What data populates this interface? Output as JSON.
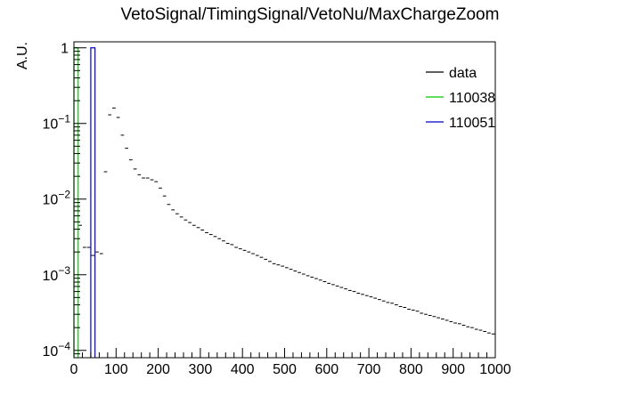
{
  "chart_data": {
    "type": "histogram",
    "title": "VetoSignal/TimingSignal/VetoNu/MaxChargeZoom",
    "ylabel": "A.U.",
    "xlabel": "",
    "x_range": [
      0,
      1000
    ],
    "y_range": [
      8e-05,
      1.2
    ],
    "y_scale": "log",
    "grid": false,
    "legend_position": "top-right",
    "x_ticks": [
      {
        "v": 0,
        "label": "0"
      },
      {
        "v": 100,
        "label": "100"
      },
      {
        "v": 200,
        "label": "200"
      },
      {
        "v": 300,
        "label": "300"
      },
      {
        "v": 400,
        "label": "400"
      },
      {
        "v": 500,
        "label": "500"
      },
      {
        "v": 600,
        "label": "600"
      },
      {
        "v": 700,
        "label": "700"
      },
      {
        "v": 800,
        "label": "800"
      },
      {
        "v": 900,
        "label": "900"
      },
      {
        "v": 1000,
        "label": "1000"
      }
    ],
    "y_ticks": [
      {
        "v": 1,
        "base": "1",
        "exp": ""
      },
      {
        "v": 0.1,
        "base": "10",
        "exp": "−1"
      },
      {
        "v": 0.01,
        "base": "10",
        "exp": "−2"
      },
      {
        "v": 0.001,
        "base": "10",
        "exp": "−3"
      },
      {
        "v": 0.0001,
        "base": "10",
        "exp": "−4"
      }
    ],
    "series": [
      {
        "name": "data",
        "color": "#000000",
        "style": "markers",
        "bin_width": 10,
        "points": [
          [
            5,
            1.0
          ],
          [
            15,
            0.0045
          ],
          [
            25,
            0.0023
          ],
          [
            35,
            0.0023
          ],
          [
            45,
            0.0018
          ],
          [
            55,
            0.002
          ],
          [
            65,
            0.0019
          ],
          [
            75,
            0.023
          ],
          [
            85,
            0.13
          ],
          [
            95,
            0.16
          ],
          [
            105,
            0.12
          ],
          [
            115,
            0.07
          ],
          [
            125,
            0.047
          ],
          [
            135,
            0.033
          ],
          [
            145,
            0.025
          ],
          [
            155,
            0.021
          ],
          [
            165,
            0.019
          ],
          [
            175,
            0.019
          ],
          [
            185,
            0.018
          ],
          [
            195,
            0.017
          ],
          [
            205,
            0.014
          ],
          [
            215,
            0.011
          ],
          [
            225,
            0.0085
          ],
          [
            235,
            0.0072
          ],
          [
            245,
            0.0064
          ],
          [
            255,
            0.0058
          ],
          [
            265,
            0.0053
          ],
          [
            275,
            0.0049
          ],
          [
            285,
            0.0045
          ],
          [
            295,
            0.0042
          ],
          [
            305,
            0.0039
          ],
          [
            315,
            0.0036
          ],
          [
            325,
            0.0034
          ],
          [
            335,
            0.0032
          ],
          [
            345,
            0.003
          ],
          [
            355,
            0.0028
          ],
          [
            365,
            0.0026
          ],
          [
            375,
            0.0025
          ],
          [
            385,
            0.0023
          ],
          [
            395,
            0.0022
          ],
          [
            405,
            0.0021
          ],
          [
            415,
            0.002
          ],
          [
            425,
            0.0019
          ],
          [
            435,
            0.0018
          ],
          [
            445,
            0.0017
          ],
          [
            455,
            0.0016
          ],
          [
            465,
            0.0015
          ],
          [
            475,
            0.0014
          ],
          [
            485,
            0.00135
          ],
          [
            495,
            0.0013
          ],
          [
            505,
            0.00124
          ],
          [
            515,
            0.00118
          ],
          [
            525,
            0.00112
          ],
          [
            535,
            0.00107
          ],
          [
            545,
            0.00102
          ],
          [
            555,
            0.00097
          ],
          [
            565,
            0.00093
          ],
          [
            575,
            0.00089
          ],
          [
            585,
            0.00085
          ],
          [
            595,
            0.00081
          ],
          [
            605,
            0.00077
          ],
          [
            615,
            0.00074
          ],
          [
            625,
            0.00071
          ],
          [
            635,
            0.00068
          ],
          [
            645,
            0.00065
          ],
          [
            655,
            0.00062
          ],
          [
            665,
            0.0006
          ],
          [
            675,
            0.00057
          ],
          [
            685,
            0.00055
          ],
          [
            695,
            0.00053
          ],
          [
            705,
            0.00051
          ],
          [
            715,
            0.00049
          ],
          [
            725,
            0.00047
          ],
          [
            735,
            0.00045
          ],
          [
            745,
            0.00043
          ],
          [
            755,
            0.00042
          ],
          [
            765,
            0.0004
          ],
          [
            775,
            0.00038
          ],
          [
            785,
            0.00037
          ],
          [
            795,
            0.00035
          ],
          [
            805,
            0.00034
          ],
          [
            815,
            0.00033
          ],
          [
            825,
            0.00031
          ],
          [
            835,
            0.0003
          ],
          [
            845,
            0.00029
          ],
          [
            855,
            0.00028
          ],
          [
            865,
            0.00027
          ],
          [
            875,
            0.00026
          ],
          [
            885,
            0.00025
          ],
          [
            895,
            0.00024
          ],
          [
            905,
            0.00023
          ],
          [
            915,
            0.000225
          ],
          [
            925,
            0.000215
          ],
          [
            935,
            0.000205
          ],
          [
            945,
            0.0002
          ],
          [
            955,
            0.00019
          ],
          [
            965,
            0.000185
          ],
          [
            975,
            0.000178
          ],
          [
            985,
            0.00017
          ],
          [
            995,
            0.000165
          ]
        ]
      },
      {
        "name": "110038",
        "color": "#00cc00",
        "style": "step",
        "bins": [
          [
            0,
            10,
            1.0
          ]
        ]
      },
      {
        "name": "110051",
        "color": "#0000cc",
        "style": "step",
        "bins": [
          [
            40,
            50,
            1.0
          ]
        ]
      }
    ]
  }
}
